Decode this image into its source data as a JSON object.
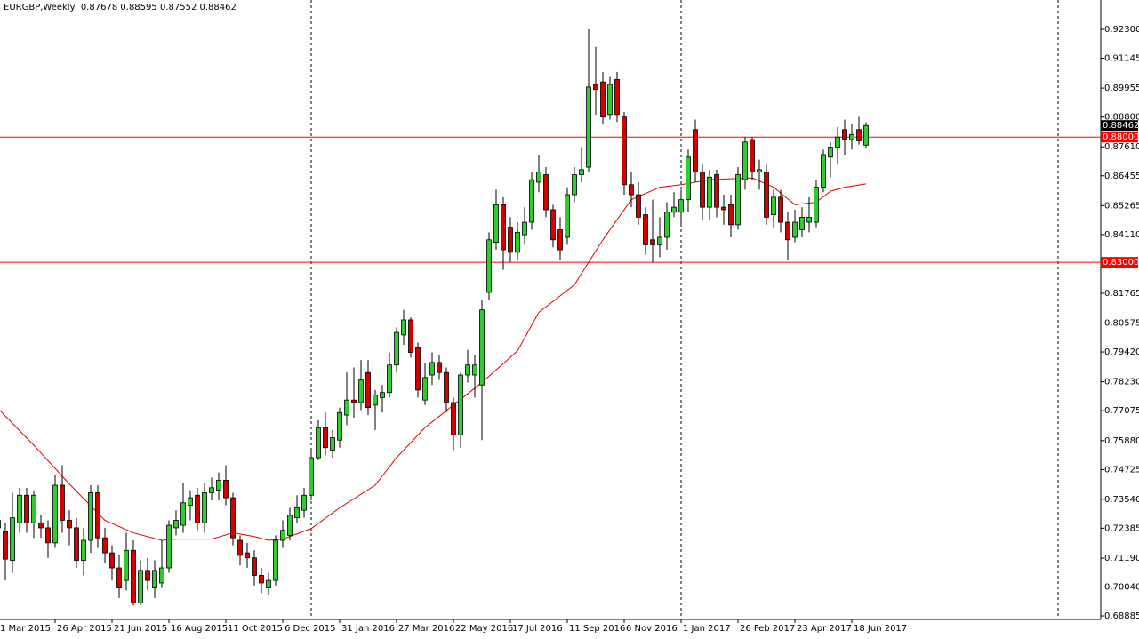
{
  "chart_data": {
    "type": "candlestick",
    "title": "EURGBP,Weekly",
    "categories": [
      "1 Mar 2015",
      null,
      null,
      null,
      null,
      null,
      null,
      null,
      "26 Apr 2015",
      null,
      null,
      null,
      null,
      null,
      null,
      null,
      "21 Jun 2015",
      null,
      null,
      null,
      null,
      null,
      null,
      null,
      "16 Aug 2015",
      null,
      null,
      null,
      null,
      null,
      null,
      null,
      "11 Oct 2015",
      null,
      null,
      null,
      null,
      null,
      null,
      null,
      "6 Dec 2015",
      null,
      null,
      null,
      null,
      null,
      null,
      null,
      "31 Jan 2016",
      null,
      null,
      null,
      null,
      null,
      null,
      null,
      "27 Mar 2016",
      null,
      null,
      null,
      null,
      null,
      null,
      null,
      "22 May 2016",
      null,
      null,
      null,
      null,
      null,
      null,
      null,
      "17 Jul 2016",
      null,
      null,
      null,
      null,
      null,
      null,
      null,
      "11 Sep 2016",
      null,
      null,
      null,
      null,
      null,
      null,
      null,
      "6 Nov 2016",
      null,
      null,
      null,
      null,
      null,
      null,
      null,
      "1 Jan 2017",
      null,
      null,
      null,
      null,
      null,
      null,
      null,
      "26 Feb 2017",
      null,
      null,
      null,
      null,
      null,
      null,
      null,
      "23 Apr 2017",
      null,
      null,
      null,
      null,
      null,
      null,
      null,
      "18 Jun 2017",
      null,
      null
    ],
    "open": [
      0.724,
      0.7225,
      0.711,
      0.726,
      0.737,
      0.726,
      0.726,
      0.724,
      0.718,
      0.741,
      0.727,
      0.724,
      0.711,
      0.719,
      0.738,
      0.72,
      0.714,
      0.708,
      0.703,
      0.715,
      0.694,
      0.707,
      0.7,
      0.702,
      0.708,
      0.724,
      0.725,
      0.733,
      0.737,
      0.726,
      0.738,
      0.739,
      0.743,
      0.736,
      0.719,
      0.714,
      0.712,
      0.705,
      0.7,
      0.703,
      0.719,
      0.721,
      0.728,
      0.731,
      0.737,
      0.752,
      0.764,
      0.755,
      0.759,
      0.769,
      0.775,
      0.774,
      0.786,
      0.773,
      0.776,
      0.778,
      0.789,
      0.801,
      0.807,
      0.796,
      0.775,
      0.785,
      0.79,
      0.786,
      0.774,
      0.761,
      0.785,
      0.785,
      0.781,
      0.818,
      0.838,
      0.853,
      0.844,
      0.834,
      0.841,
      0.846,
      0.862,
      0.865,
      0.851,
      0.843,
      0.84,
      0.857,
      0.865,
      0.868,
      0.901,
      0.902,
      0.889,
      0.903,
      0.888,
      0.861,
      0.857,
      0.849,
      0.839,
      0.837,
      0.84,
      0.85,
      0.85,
      0.855,
      0.883,
      0.866,
      0.852,
      0.865,
      0.852,
      0.853,
      0.845,
      0.863,
      0.879,
      0.866,
      0.866,
      0.849,
      0.856,
      0.846,
      0.84,
      0.843,
      0.846,
      0.846,
      0.86,
      0.872,
      0.876,
      0.883,
      0.879,
      0.883,
      0.87678
    ],
    "high": [
      0.731,
      0.726,
      0.738,
      0.74,
      0.74,
      0.739,
      0.729,
      0.727,
      0.745,
      0.749,
      0.731,
      0.728,
      0.724,
      0.741,
      0.741,
      0.724,
      0.717,
      0.713,
      0.722,
      0.719,
      0.711,
      0.712,
      0.711,
      0.719,
      0.727,
      0.731,
      0.742,
      0.739,
      0.74,
      0.742,
      0.744,
      0.746,
      0.749,
      0.738,
      0.721,
      0.718,
      0.715,
      0.708,
      0.706,
      0.721,
      0.727,
      0.732,
      0.737,
      0.74,
      0.755,
      0.767,
      0.77,
      0.763,
      0.772,
      0.786,
      0.788,
      0.791,
      0.791,
      0.779,
      0.781,
      0.794,
      0.804,
      0.811,
      0.808,
      0.798,
      0.79,
      0.794,
      0.793,
      0.788,
      0.776,
      0.786,
      0.795,
      0.793,
      0.815,
      0.842,
      0.859,
      0.856,
      0.848,
      0.846,
      0.852,
      0.866,
      0.873,
      0.868,
      0.853,
      0.848,
      0.86,
      0.868,
      0.876,
      0.923,
      0.916,
      0.906,
      0.904,
      0.906,
      0.89,
      0.866,
      0.862,
      0.852,
      0.855,
      0.848,
      0.854,
      0.858,
      0.859,
      0.875,
      0.887,
      0.869,
      0.867,
      0.867,
      0.857,
      0.857,
      0.868,
      0.88,
      0.88,
      0.871,
      0.869,
      0.859,
      0.859,
      0.85,
      0.851,
      0.852,
      0.856,
      0.863,
      0.875,
      0.878,
      0.884,
      0.887,
      0.885,
      0.888,
      0.88595
    ],
    "low": [
      0.718,
      0.703,
      0.706,
      0.722,
      0.722,
      0.72,
      0.72,
      0.712,
      0.716,
      0.722,
      0.717,
      0.708,
      0.705,
      0.714,
      0.716,
      0.71,
      0.703,
      0.696,
      0.699,
      0.693,
      0.693,
      0.699,
      0.696,
      0.7,
      0.706,
      0.721,
      0.722,
      0.727,
      0.723,
      0.722,
      0.735,
      0.735,
      0.733,
      0.717,
      0.709,
      0.708,
      0.701,
      0.698,
      0.697,
      0.701,
      0.716,
      0.719,
      0.726,
      0.728,
      0.735,
      0.751,
      0.753,
      0.752,
      0.756,
      0.765,
      0.768,
      0.771,
      0.769,
      0.763,
      0.77,
      0.776,
      0.786,
      0.797,
      0.792,
      0.776,
      0.773,
      0.781,
      0.783,
      0.77,
      0.755,
      0.756,
      0.782,
      0.776,
      0.759,
      0.815,
      0.835,
      0.827,
      0.83,
      0.831,
      0.837,
      0.843,
      0.858,
      0.848,
      0.836,
      0.831,
      0.837,
      0.854,
      0.862,
      0.866,
      0.889,
      0.885,
      0.887,
      0.886,
      0.857,
      0.852,
      0.845,
      0.833,
      0.83,
      0.832,
      0.835,
      0.848,
      0.845,
      0.85,
      0.862,
      0.847,
      0.847,
      0.848,
      0.845,
      0.84,
      0.843,
      0.859,
      0.863,
      0.859,
      0.845,
      0.844,
      0.842,
      0.831,
      0.838,
      0.84,
      0.842,
      0.844,
      0.858,
      0.864,
      0.869,
      0.873,
      0.875,
      0.877,
      0.87552
    ],
    "close": [
      0.727,
      0.7115,
      0.728,
      0.737,
      0.726,
      0.737,
      0.724,
      0.718,
      0.741,
      0.727,
      0.724,
      0.711,
      0.719,
      0.738,
      0.72,
      0.714,
      0.708,
      0.7,
      0.715,
      0.694,
      0.707,
      0.703,
      0.707,
      0.708,
      0.725,
      0.727,
      0.734,
      0.736,
      0.726,
      0.738,
      0.74,
      0.743,
      0.736,
      0.72,
      0.713,
      0.712,
      0.705,
      0.702,
      0.703,
      0.719,
      0.723,
      0.729,
      0.732,
      0.737,
      0.752,
      0.764,
      0.756,
      0.76,
      0.77,
      0.775,
      0.774,
      0.783,
      0.772,
      0.777,
      0.778,
      0.789,
      0.802,
      0.807,
      0.794,
      0.779,
      0.784,
      0.79,
      0.786,
      0.774,
      0.761,
      0.785,
      0.789,
      0.789,
      0.811,
      0.839,
      0.853,
      0.835,
      0.834,
      0.842,
      0.846,
      0.863,
      0.866,
      0.851,
      0.839,
      0.835,
      0.857,
      0.865,
      0.867,
      0.9,
      0.899,
      0.888,
      0.901,
      0.889,
      0.861,
      0.857,
      0.848,
      0.837,
      0.837,
      0.84,
      0.85,
      0.852,
      0.855,
      0.872,
      0.866,
      0.852,
      0.864,
      0.852,
      0.851,
      0.845,
      0.865,
      0.878,
      0.866,
      0.867,
      0.848,
      0.856,
      0.846,
      0.839,
      0.846,
      0.848,
      0.848,
      0.86,
      0.873,
      0.876,
      0.88,
      0.879,
      0.881,
      0.8785,
      0.88462
    ],
    "up_color": "#2ecc2e",
    "down_color": "#d40000",
    "moving_average": {
      "color": "#e00000",
      "x": [
        0,
        5,
        10,
        15,
        19,
        23,
        25,
        30,
        33,
        36,
        38,
        40,
        44,
        48,
        53,
        56,
        60,
        64,
        68,
        73,
        76,
        81,
        85,
        89,
        93,
        96,
        100,
        106,
        109,
        112,
        115,
        117,
        119,
        122
      ],
      "values": [
        0.7715,
        0.757,
        0.7415,
        0.727,
        0.722,
        0.719,
        0.7195,
        0.7195,
        0.722,
        0.7205,
        0.719,
        0.7195,
        0.7237,
        0.732,
        0.741,
        0.752,
        0.764,
        0.773,
        0.782,
        0.7946,
        0.81,
        0.821,
        0.839,
        0.855,
        0.86,
        0.861,
        0.863,
        0.8637,
        0.86,
        0.853,
        0.854,
        0.8584,
        0.86,
        0.8613
      ]
    },
    "hlines": [
      {
        "value": 0.88,
        "label": "0.88000",
        "color": "#ff0000"
      },
      {
        "value": 0.83,
        "label": "0.83000",
        "color": "#ff0000"
      }
    ],
    "ylim": [
      0.68743,
      0.93471
    ],
    "yticks": [
      {
        "value": 0.923,
        "label": "0.92300"
      },
      {
        "value": 0.91145,
        "label": "0.91145"
      },
      {
        "value": 0.89955,
        "label": "0.89955"
      },
      {
        "value": 0.888,
        "label": "0.88800"
      },
      {
        "value": 0.8761,
        "label": "0.87610"
      },
      {
        "value": 0.86455,
        "label": "0.86455"
      },
      {
        "value": 0.85265,
        "label": "0.85265"
      },
      {
        "value": 0.8411,
        "label": "0.84110"
      },
      {
        "value": 0.81765,
        "label": "0.81765"
      },
      {
        "value": 0.80575,
        "label": "0.80575"
      },
      {
        "value": 0.7942,
        "label": "0.79420"
      },
      {
        "value": 0.7823,
        "label": "0.78230"
      },
      {
        "value": 0.77075,
        "label": "0.77075"
      },
      {
        "value": 0.7588,
        "label": "0.75880"
      },
      {
        "value": 0.74725,
        "label": "0.74725"
      },
      {
        "value": 0.7354,
        "label": "0.73540"
      },
      {
        "value": 0.72385,
        "label": "0.72385"
      },
      {
        "value": 0.7119,
        "label": "0.71190"
      },
      {
        "value": 0.7004,
        "label": "0.70040"
      },
      {
        "value": 0.68885,
        "label": "0.68885"
      }
    ]
  }
}
